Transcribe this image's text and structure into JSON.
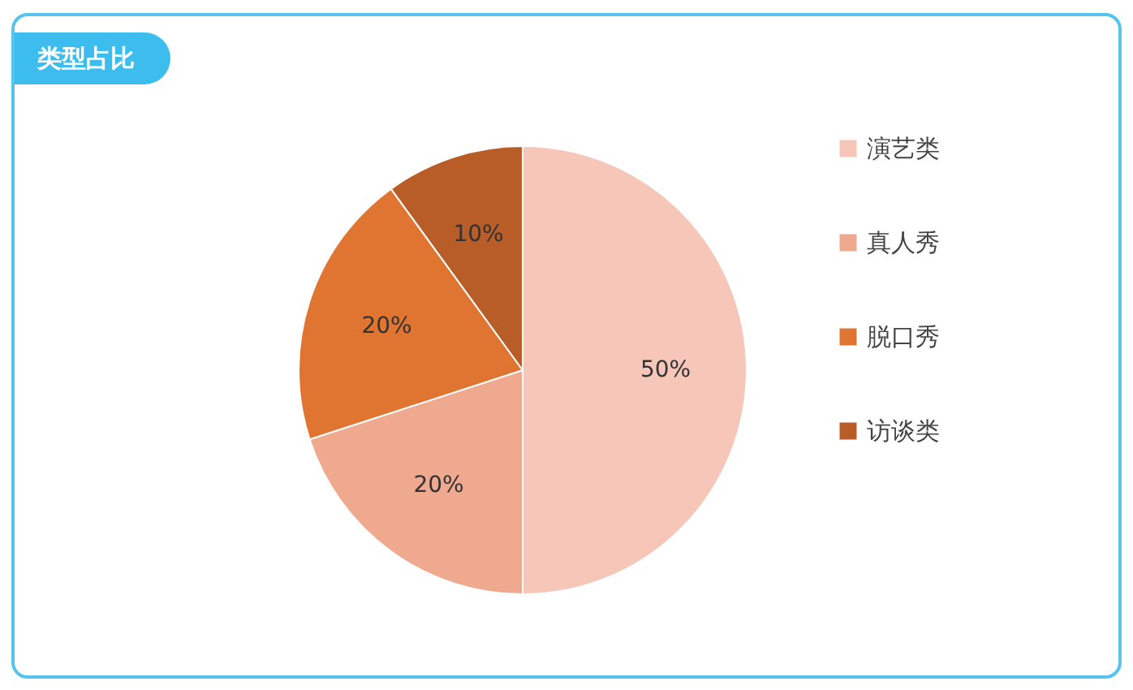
{
  "chart_data": {
    "type": "pie",
    "title": "类型占比",
    "categories": [
      "演艺类",
      "真人秀",
      "脱口秀",
      "访谈类"
    ],
    "values": [
      50,
      20,
      20,
      10
    ],
    "value_labels": [
      "50%",
      "20%",
      "20%",
      "10%"
    ],
    "colors": [
      "#f6c7b8",
      "#efa98e",
      "#e07532",
      "#b85d27"
    ],
    "legend": "right"
  }
}
